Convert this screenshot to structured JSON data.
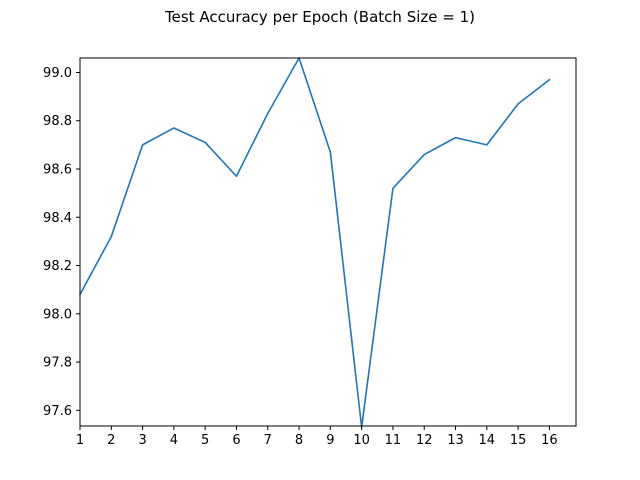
{
  "chart_data": {
    "type": "line",
    "title": "Test Accuracy per Epoch (Batch Size = 1)",
    "xlabel": "",
    "ylabel": "",
    "x": [
      1,
      2,
      3,
      4,
      5,
      6,
      7,
      8,
      9,
      10,
      11,
      12,
      13,
      14,
      15,
      16
    ],
    "series": [
      {
        "values": [
          98.08,
          98.32,
          98.7,
          98.77,
          98.71,
          98.57,
          98.83,
          99.06,
          98.67,
          97.53,
          98.52,
          98.66,
          98.73,
          98.7,
          98.87,
          98.97
        ],
        "color": "#1f77b4"
      }
    ],
    "xlim": [
      1,
      16.85
    ],
    "ylim": [
      97.535,
      99.06
    ],
    "xticks": [
      "1",
      "2",
      "3",
      "4",
      "5",
      "6",
      "7",
      "8",
      "9",
      "10",
      "11",
      "12",
      "13",
      "14",
      "15",
      "16"
    ],
    "yticks": [
      "97.6",
      "97.8",
      "98.0",
      "98.2",
      "98.4",
      "98.6",
      "98.8",
      "99.0"
    ],
    "grid": false,
    "legend": "none"
  }
}
